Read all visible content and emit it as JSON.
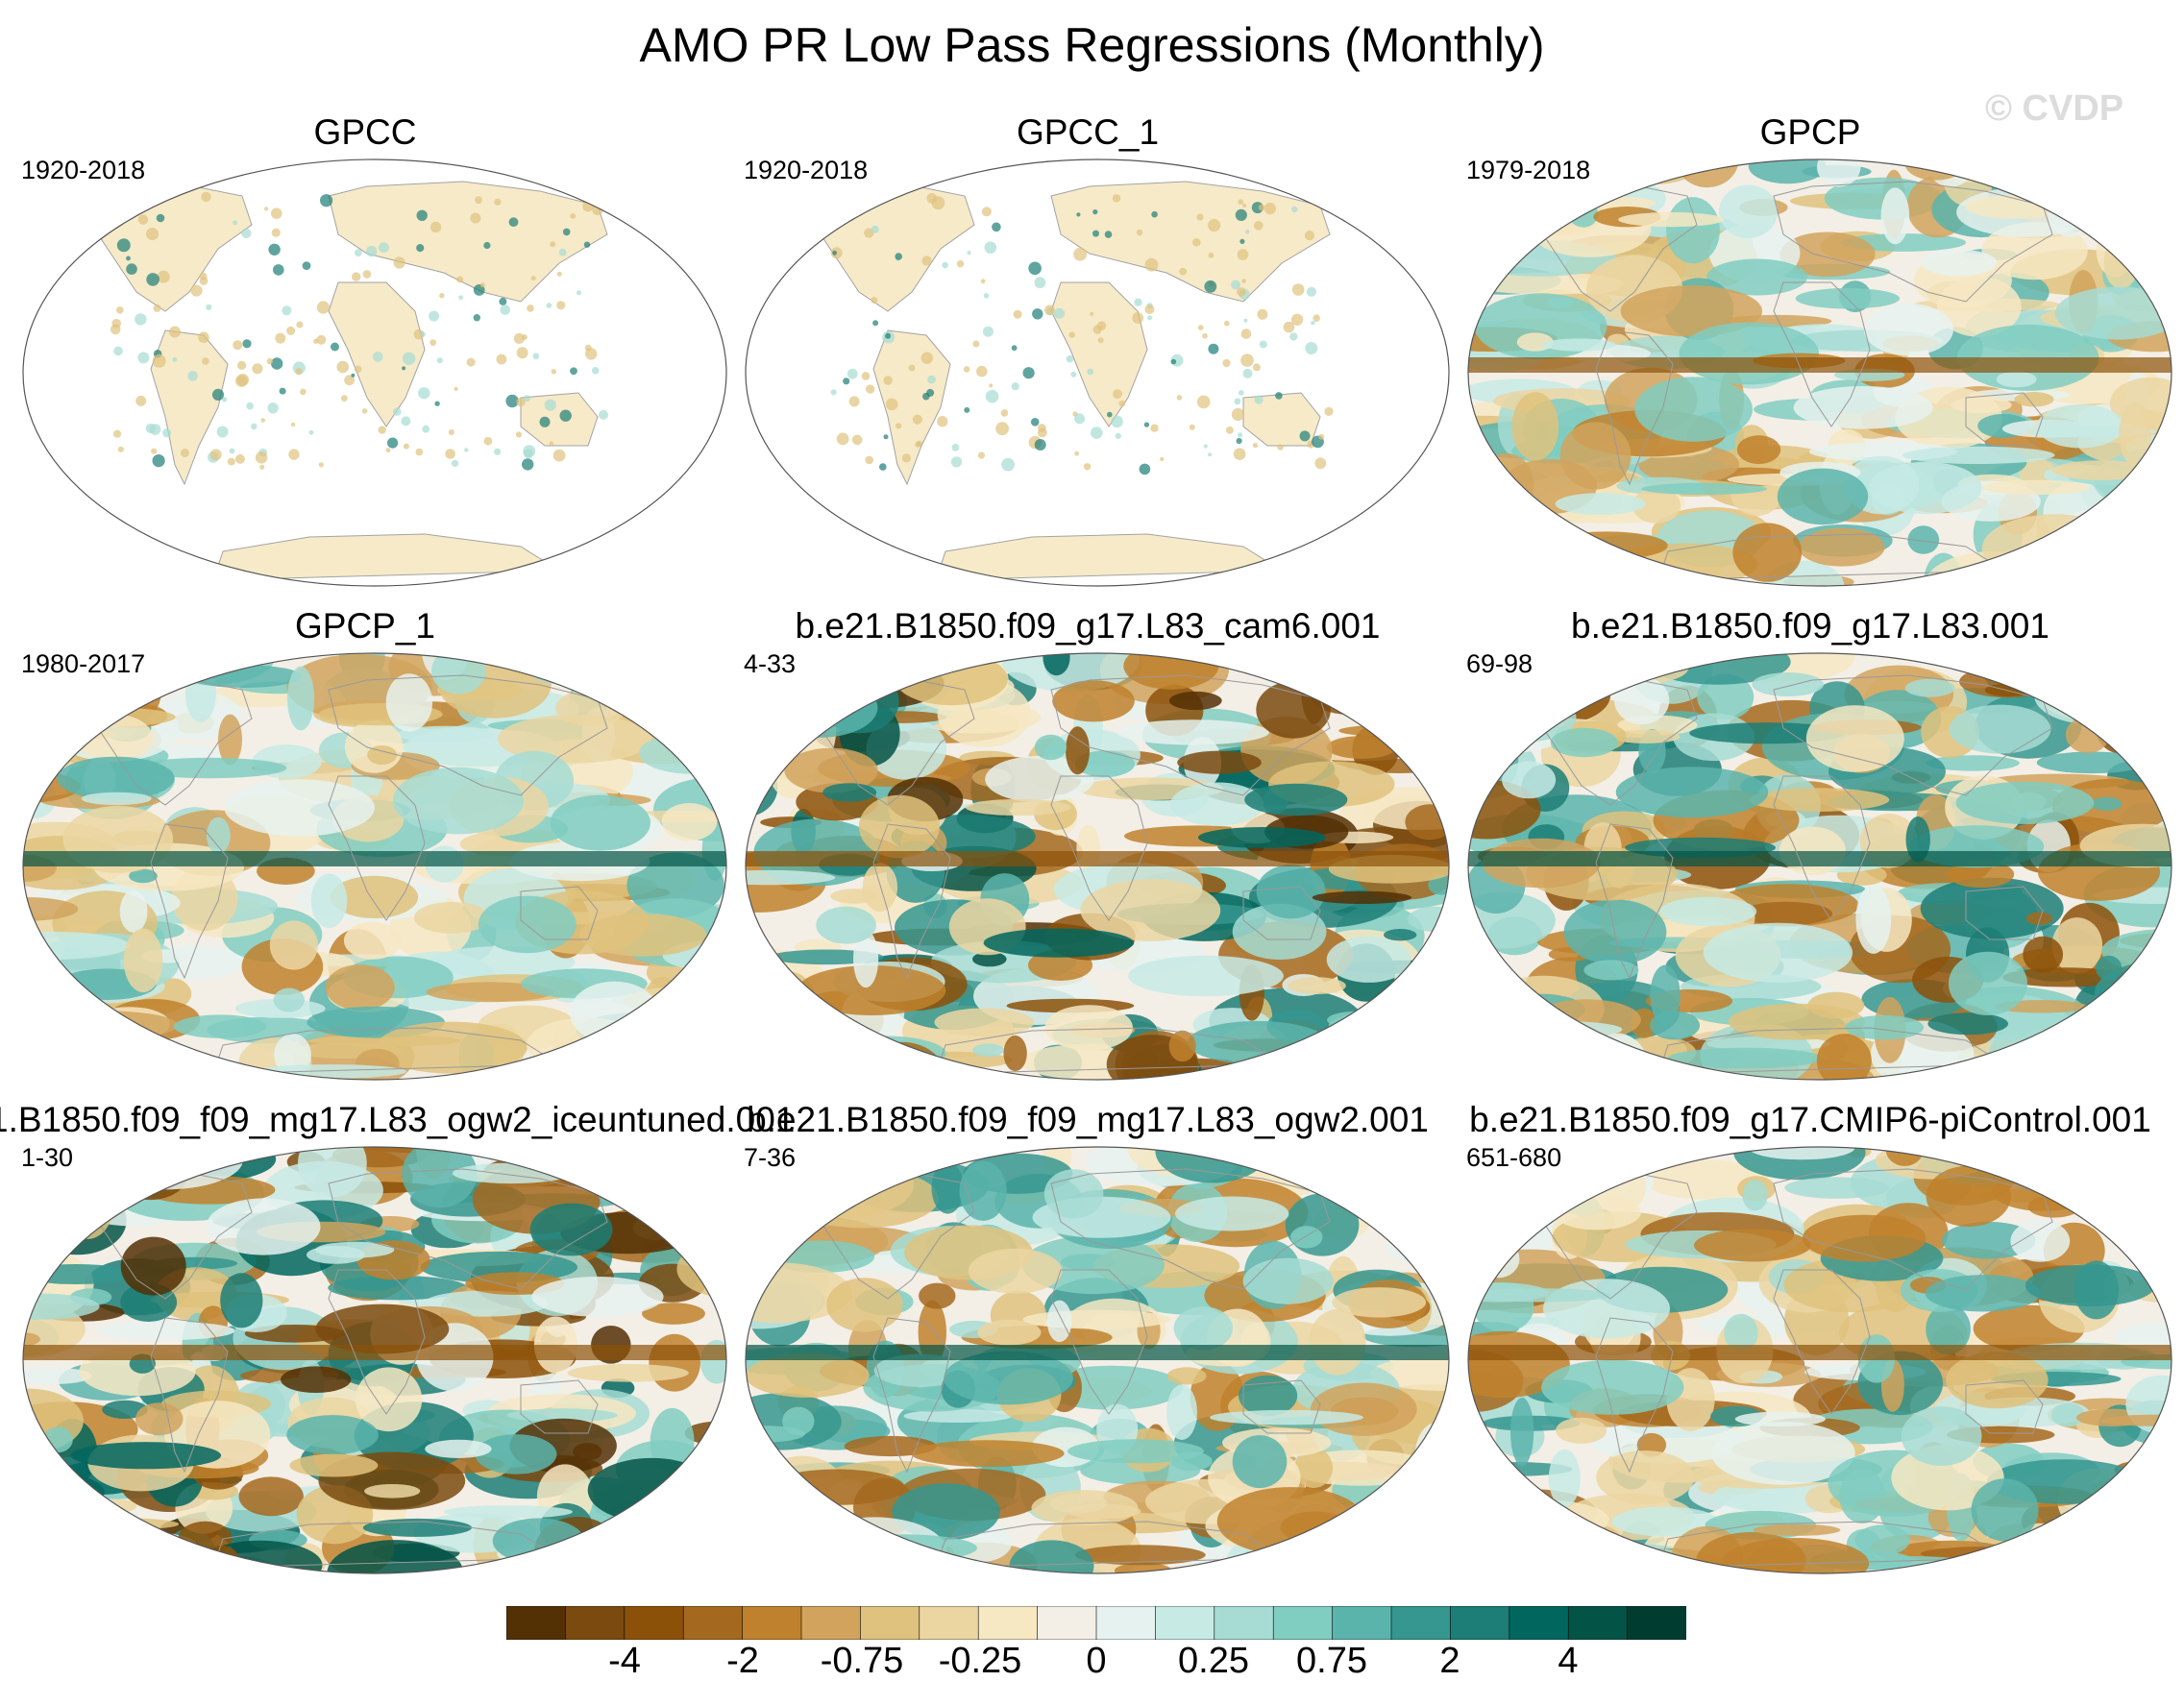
{
  "title": "AMO PR Low Pass Regressions (Monthly)",
  "watermark": "© CVDP",
  "panels": [
    {
      "title": "GPCC",
      "years": "1920-2018",
      "coverage": "land"
    },
    {
      "title": "GPCC_1",
      "years": "1920-2018",
      "coverage": "land"
    },
    {
      "title": "GPCP",
      "years": "1979-2018",
      "coverage": "global"
    },
    {
      "title": "GPCP_1",
      "years": "1980-2017",
      "coverage": "global"
    },
    {
      "title": "b.e21.B1850.f09_g17.L83_cam6.001",
      "years": "4-33",
      "coverage": "global"
    },
    {
      "title": "b.e21.B1850.f09_g17.L83.001",
      "years": "69-98",
      "coverage": "global"
    },
    {
      "title": "1.B1850.f09_f09_mg17.L83_ogw2_iceuntuned.001",
      "years": "1-30",
      "coverage": "global"
    },
    {
      "title": "b.e21.B1850.f09_f09_mg17.L83_ogw2.001",
      "years": "7-36",
      "coverage": "global"
    },
    {
      "title": "b.e21.B1850.f09_g17.CMIP6-piControl.001",
      "years": "651-680",
      "coverage": "global"
    }
  ],
  "colorbar": {
    "colors": [
      "#543005",
      "#7a4a0f",
      "#8c5109",
      "#a4691e",
      "#bf812d",
      "#d1a35d",
      "#dfc27d",
      "#ebd6a2",
      "#f6e8c3",
      "#f3efe6",
      "#e6f2ef",
      "#c7eae5",
      "#a6dcd3",
      "#80cdc1",
      "#5ab4ac",
      "#35978f",
      "#1c7e76",
      "#01665e",
      "#035446",
      "#003c30"
    ],
    "labels": [
      "-4",
      "-2",
      "-0.75",
      "-0.25",
      "0",
      "0.25",
      "0.75",
      "2",
      "4"
    ]
  },
  "legend_colors": {
    "land_outline": "#999999",
    "ocean_blank": "#ffffff",
    "map_border": "#555555"
  }
}
